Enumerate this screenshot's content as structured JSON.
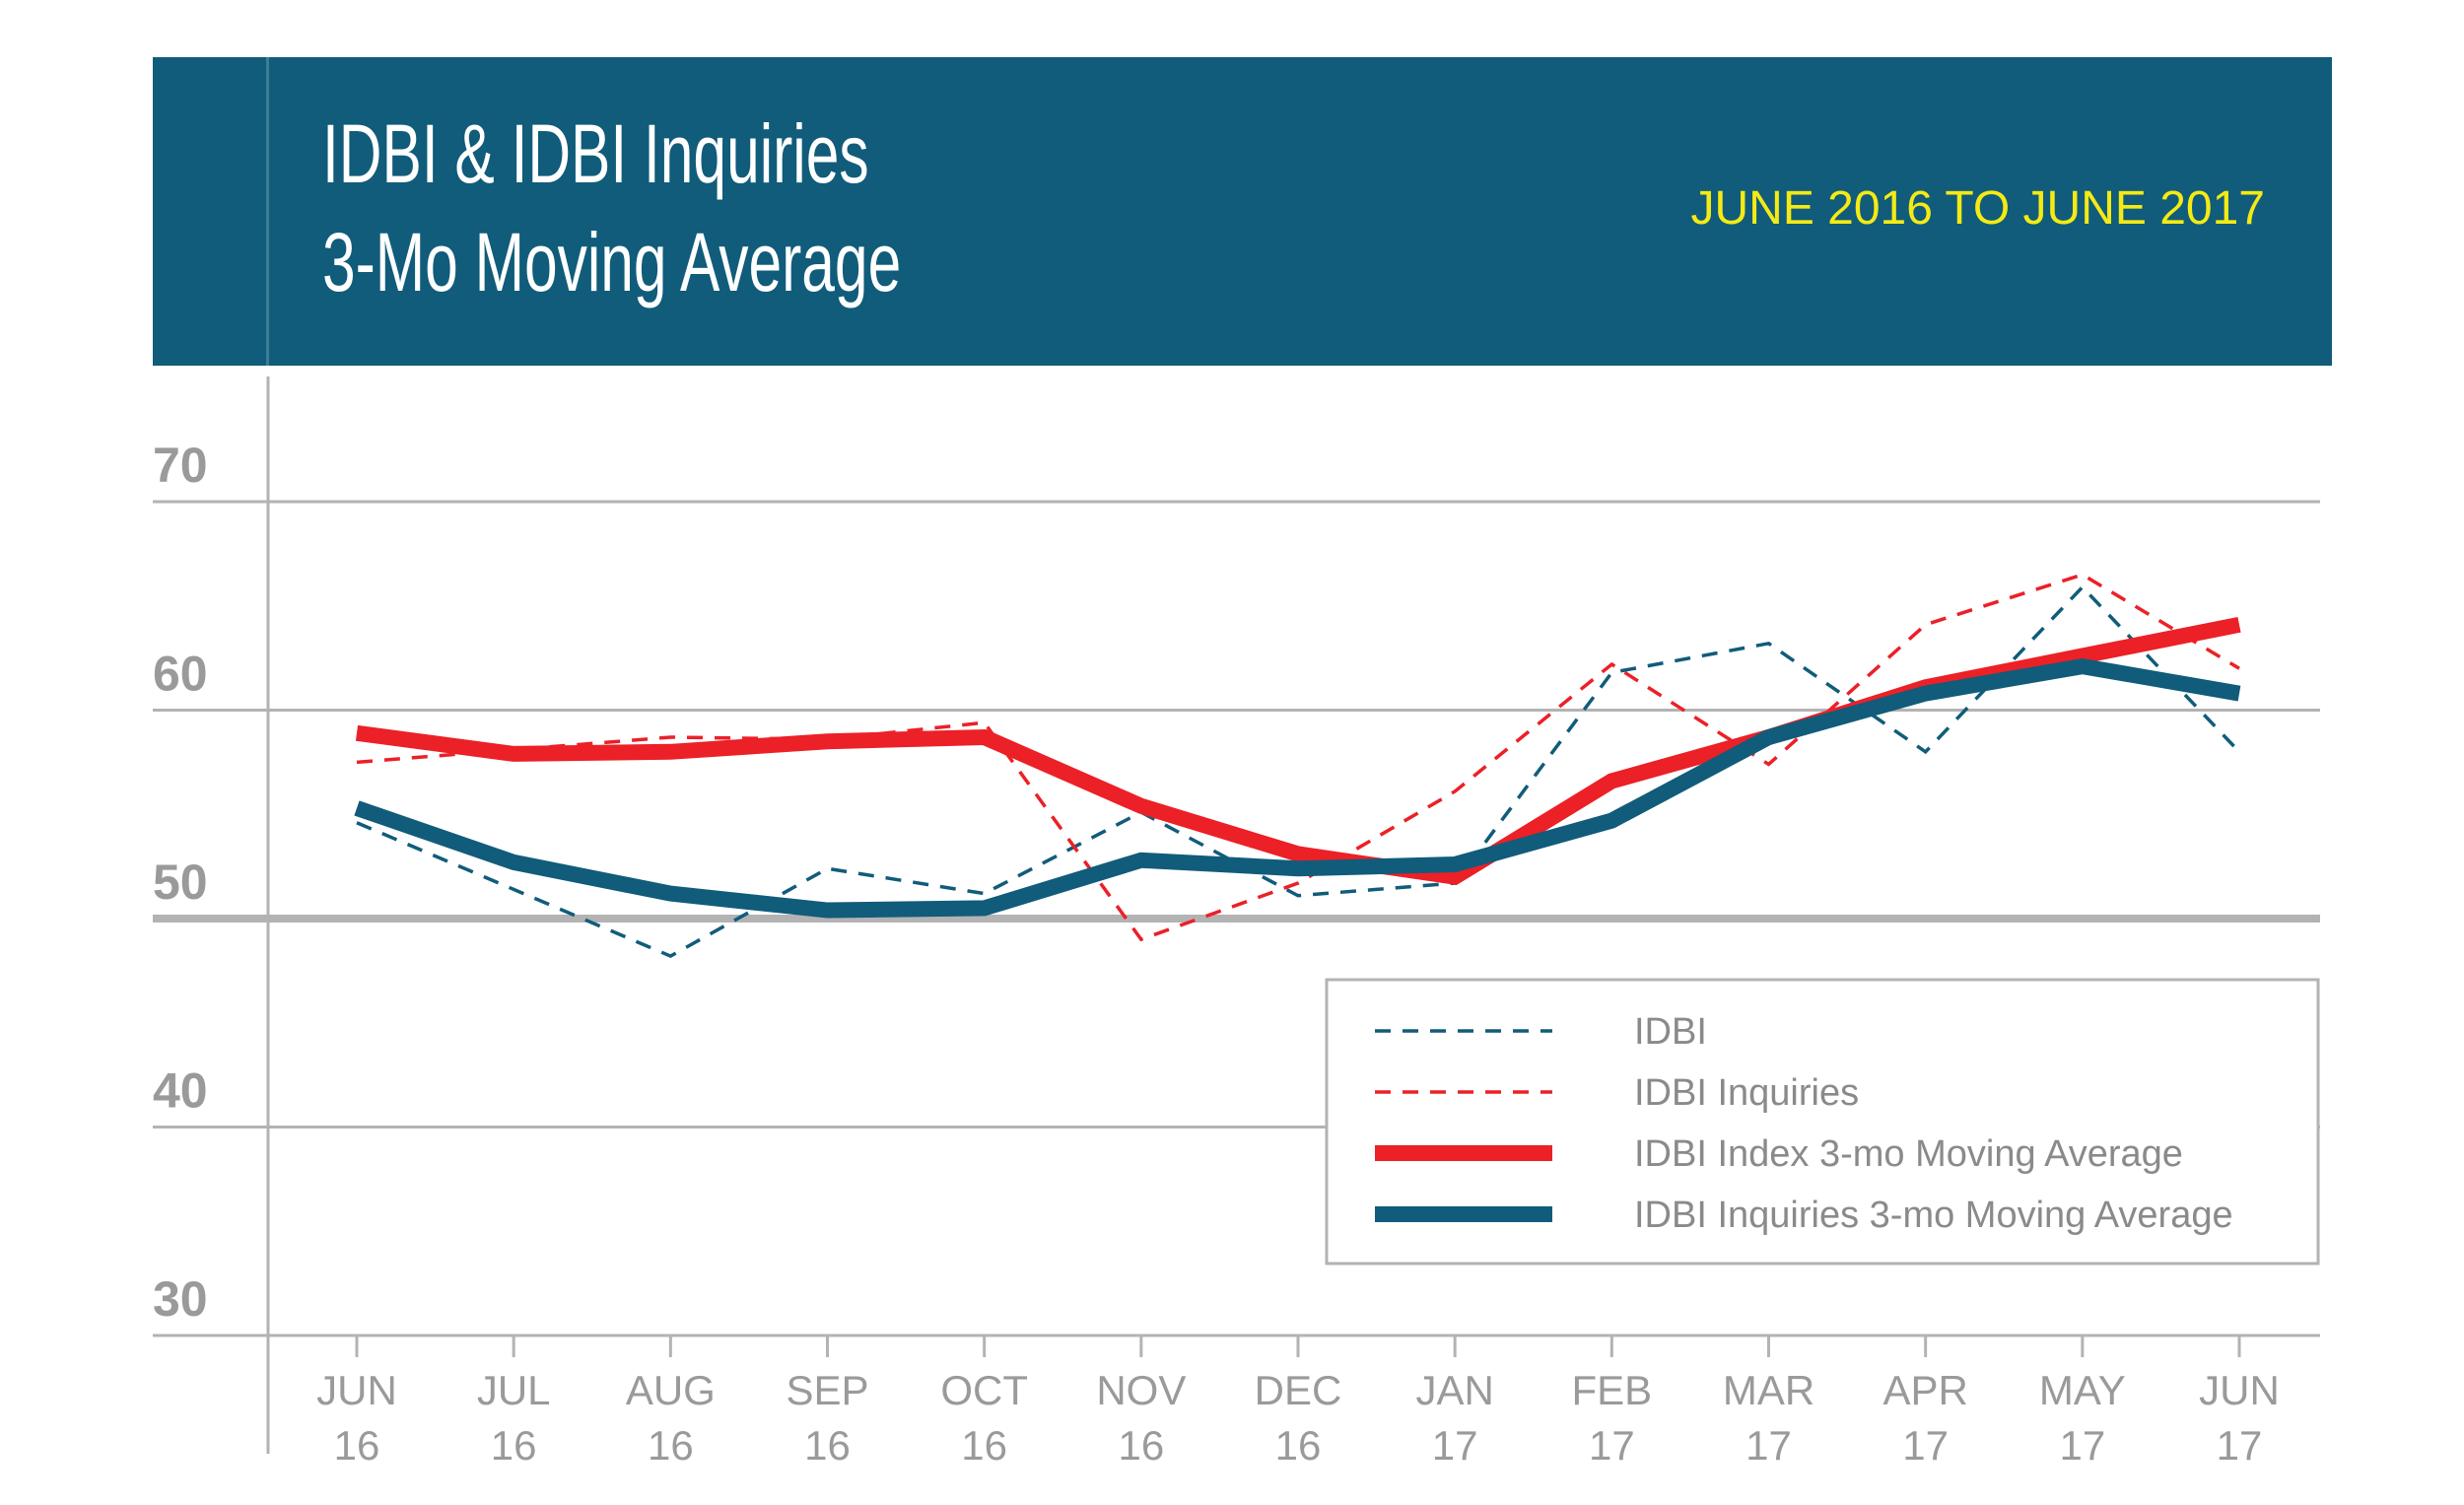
{
  "chart_data": {
    "type": "line",
    "title_lines": [
      "IDBI & IDBI Inquiries",
      "3-Mo Moving Average"
    ],
    "subtitle": "JUNE 2016 TO JUNE 2017",
    "xlabel": "",
    "ylabel": "",
    "ylim": [
      30,
      70
    ],
    "yticks": [
      "70",
      "60",
      "50",
      "40",
      "30"
    ],
    "ytick_values": [
      70,
      60,
      50,
      40,
      30
    ],
    "categories": [
      [
        "JUN",
        "16"
      ],
      [
        "JUL",
        "16"
      ],
      [
        "AUG",
        "16"
      ],
      [
        "SEP",
        "16"
      ],
      [
        "OCT",
        "16"
      ],
      [
        "NOV",
        "16"
      ],
      [
        "DEC",
        "16"
      ],
      [
        "JAN",
        "17"
      ],
      [
        "FEB",
        "17"
      ],
      [
        "MAR",
        "17"
      ],
      [
        "APR",
        "17"
      ],
      [
        "MAY",
        "17"
      ],
      [
        "JUN",
        "17"
      ]
    ],
    "grid": true,
    "legend_position": "bottom-right",
    "series": [
      {
        "name": "IDBI",
        "color": "#105c7a",
        "style": "dashed",
        "values": [
          54.6,
          51.4,
          48.2,
          52.4,
          51.2,
          55.1,
          51.1,
          51.7,
          61.8,
          63.2,
          58.0,
          65.9,
          58.0
        ]
      },
      {
        "name": "IDBI Inquiries",
        "color": "#ec2027",
        "style": "dashed",
        "values": [
          57.5,
          58.1,
          58.7,
          58.6,
          59.4,
          49.0,
          51.7,
          56.1,
          62.2,
          57.4,
          64.1,
          66.5,
          62.0
        ]
      },
      {
        "name": "IDBI Index 3-mo Moving Average",
        "color": "#ec2027",
        "style": "solid",
        "values": [
          58.9,
          57.9,
          58.0,
          58.5,
          58.7,
          55.4,
          53.1,
          52.0,
          56.6,
          58.7,
          61.1,
          62.6,
          64.1
        ]
      },
      {
        "name": "IDBI Inquiries 3-mo Moving Average",
        "color": "#105c7a",
        "style": "solid",
        "values": [
          55.3,
          52.7,
          51.2,
          50.4,
          50.5,
          52.8,
          52.4,
          52.6,
          54.7,
          58.7,
          60.8,
          62.1,
          60.8
        ]
      }
    ],
    "colors": {
      "header_bg": "#105c7a",
      "subtitle": "#f5ea14",
      "grid": "#b3b3b3"
    }
  }
}
